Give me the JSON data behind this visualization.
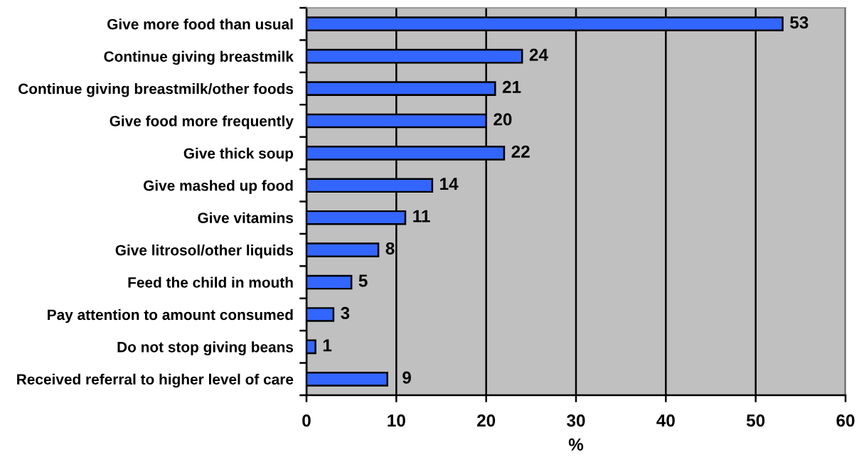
{
  "chart_data": {
    "type": "bar",
    "orientation": "horizontal",
    "categories": [
      "Give more food than usual",
      "Continue giving breastmilk",
      "Continue giving breastmilk/other foods",
      "Give food more frequently",
      "Give thick soup",
      "Give mashed up food",
      "Give vitamins",
      "Give litrosol/other liquids",
      "Feed the child in mouth",
      "Pay attention to amount consumed",
      "Do not stop giving beans",
      "Received referral to higher level of care"
    ],
    "values": [
      53,
      24,
      21,
      20,
      22,
      14,
      11,
      8,
      5,
      3,
      1,
      9
    ],
    "color": "#3366ff",
    "xlim": [
      0,
      60
    ],
    "xticks": [
      0,
      10,
      20,
      30,
      40,
      50,
      60
    ],
    "xlabel": "%",
    "grid": "x",
    "data_labels": true,
    "legend": false
  }
}
